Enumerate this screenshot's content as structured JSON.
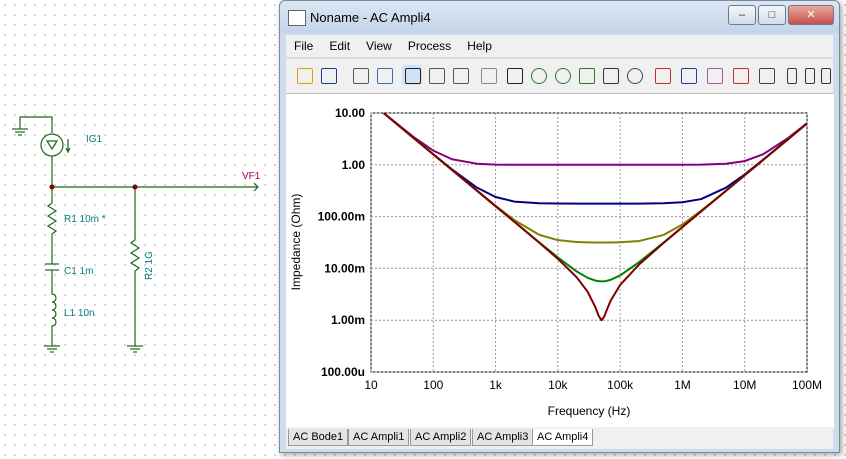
{
  "window": {
    "title": "Noname - AC Ampli4"
  },
  "menu": [
    "File",
    "Edit",
    "View",
    "Process",
    "Help"
  ],
  "tabs": [
    "AC Bode1",
    "AC Ampli1",
    "AC Ampli2",
    "AC Ampli3",
    "AC Ampli4"
  ],
  "schematic": {
    "source": "IG1",
    "output": "VF1",
    "r1": "R1 10m *",
    "c1": "C1 1m",
    "l1": "L1 10n",
    "r2": "R2 1G"
  },
  "chart_data": {
    "type": "line",
    "x_label": "Frequency (Hz)",
    "y_label": "Impedance (Ohm)",
    "xscale": "log",
    "yscale": "log",
    "grid": true,
    "xlim": [
      10,
      100000000
    ],
    "ylim": [
      0.0001,
      10
    ],
    "xticks": [
      10,
      100,
      {
        "value": 1000,
        "label": "1k"
      },
      {
        "value": 10000,
        "label": "10k"
      },
      {
        "value": 100000,
        "label": "100k"
      },
      {
        "value": 1000000,
        "label": "1M"
      },
      {
        "value": 10000000,
        "label": "10M"
      },
      {
        "value": 100000000,
        "label": "100M"
      }
    ],
    "yticks": [
      {
        "value": 10,
        "label": "10.00"
      },
      {
        "value": 1,
        "label": "1.00"
      },
      {
        "value": 0.1,
        "label": "100.00m"
      },
      {
        "value": 0.01,
        "label": "10.00m"
      },
      {
        "value": 0.001,
        "label": "1.00m"
      },
      {
        "value": 0.0001,
        "label": "100.00u"
      }
    ],
    "x": [
      16,
      20,
      50,
      100,
      200,
      500,
      1000,
      2000,
      5000,
      10000,
      20000,
      30000,
      40000,
      45000,
      50000,
      55000,
      60000,
      70000,
      100000,
      200000,
      500000,
      1000000,
      2000000,
      5000000,
      10000000,
      20000000,
      50000000,
      100000000
    ],
    "series": [
      {
        "color": "#800080",
        "values": [
          10.0,
          8.02,
          3.33,
          1.88,
          1.28,
          1.05,
          1.01,
          1,
          1,
          1,
          1,
          1,
          1,
          1,
          1,
          1,
          1,
          1,
          1,
          1,
          1,
          1,
          1.01,
          1.05,
          1.18,
          1.61,
          3.3,
          6.36
        ]
      },
      {
        "color": "#000080",
        "values": [
          9.95,
          7.96,
          3.19,
          1.6,
          0.816,
          0.364,
          0.239,
          0.195,
          0.181,
          0.179,
          0.178,
          0.178,
          0.178,
          0.178,
          0.178,
          0.178,
          0.178,
          0.178,
          0.178,
          0.178,
          0.181,
          0.189,
          0.218,
          0.361,
          0.653,
          1.27,
          3.15,
          6.28
        ]
      },
      {
        "color": "#808000",
        "values": [
          9.95,
          7.96,
          3.18,
          1.59,
          0.797,
          0.32,
          0.162,
          0.0856,
          0.0446,
          0.0351,
          0.0323,
          0.0318,
          0.0316,
          0.0316,
          0.0316,
          0.0316,
          0.0316,
          0.0317,
          0.032,
          0.0337,
          0.0443,
          0.0703,
          0.13,
          0.316,
          0.629,
          1.257,
          3.14,
          6.28
        ]
      },
      {
        "color": "#008000",
        "values": [
          9.95,
          7.96,
          3.18,
          1.59,
          0.796,
          0.318,
          0.159,
          0.0797,
          0.032,
          0.0163,
          0.00875,
          0.00658,
          0.00581,
          0.00567,
          0.00562,
          0.00565,
          0.00573,
          0.00601,
          0.00732,
          0.0131,
          0.0316,
          0.0631,
          0.126,
          0.314,
          0.628,
          1.257,
          3.14,
          6.28
        ]
      },
      {
        "color": "#800000",
        "values": [
          9.95,
          7.96,
          3.18,
          1.59,
          0.796,
          0.318,
          0.159,
          0.0795,
          0.0315,
          0.0153,
          0.00677,
          0.00356,
          0.00178,
          0.00123,
          0.001,
          0.00115,
          0.0015,
          0.00235,
          0.0048,
          0.0118,
          0.0311,
          0.0628,
          0.126,
          0.314,
          0.628,
          1.257,
          3.14,
          6.28
        ]
      }
    ]
  }
}
